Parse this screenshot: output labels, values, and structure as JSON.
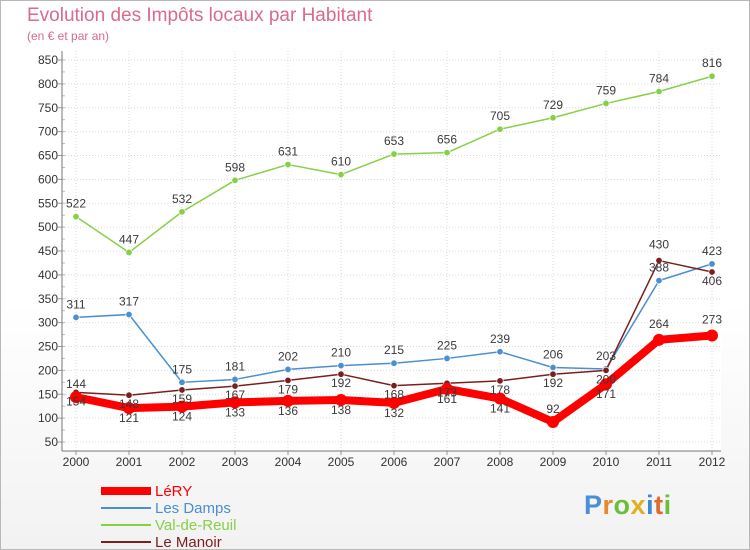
{
  "header": {
    "title": "Evolution des Impôts locaux par Habitant",
    "subtitle": "(en € et par an)"
  },
  "chart_data": {
    "type": "line",
    "title": "Evolution des Impôts locaux par Habitant",
    "subtitle": "(en € et par an)",
    "xlabel": "",
    "ylabel": "",
    "x": [
      2000,
      2001,
      2002,
      2003,
      2004,
      2005,
      2006,
      2007,
      2008,
      2009,
      2010,
      2011,
      2012
    ],
    "ylim": [
      50,
      850
    ],
    "yticks": [
      50,
      100,
      150,
      200,
      250,
      300,
      350,
      400,
      450,
      500,
      550,
      600,
      650,
      700,
      750,
      800,
      850
    ],
    "grid": true,
    "legend_position": "bottom-left",
    "series": [
      {
        "name": "Val-de-Reuil",
        "color": "#86d048",
        "values": [
          522,
          447,
          532,
          598,
          631,
          610,
          653,
          656,
          705,
          729,
          759,
          784,
          816
        ]
      },
      {
        "name": "Les Damps",
        "color": "#4a8fcf",
        "values": [
          311,
          317,
          175,
          181,
          202,
          210,
          215,
          225,
          239,
          206,
          203,
          388,
          423
        ]
      },
      {
        "name": "Le Manoir",
        "color": "#7a1f1f",
        "values": [
          154,
          148,
          159,
          167,
          179,
          192,
          168,
          173,
          178,
          192,
          200,
          430,
          406
        ]
      },
      {
        "name": "LéRY",
        "color": "#ff0000",
        "values": [
          144,
          121,
          124,
          133,
          136,
          138,
          132,
          161,
          141,
          92,
          171,
          264,
          273
        ]
      }
    ],
    "legend": [
      "LéRY",
      "Les Damps",
      "Val-de-Reuil",
      "Le Manoir"
    ]
  },
  "logo": {
    "letters": [
      "P",
      "r",
      "o",
      "x",
      "i",
      "t",
      "i"
    ],
    "colors": [
      "#4a90d9",
      "#e58a2e",
      "#6cbf3c",
      "#e0b020",
      "#3b8ad6",
      "#e06a2e",
      "#6cbf3c"
    ]
  }
}
